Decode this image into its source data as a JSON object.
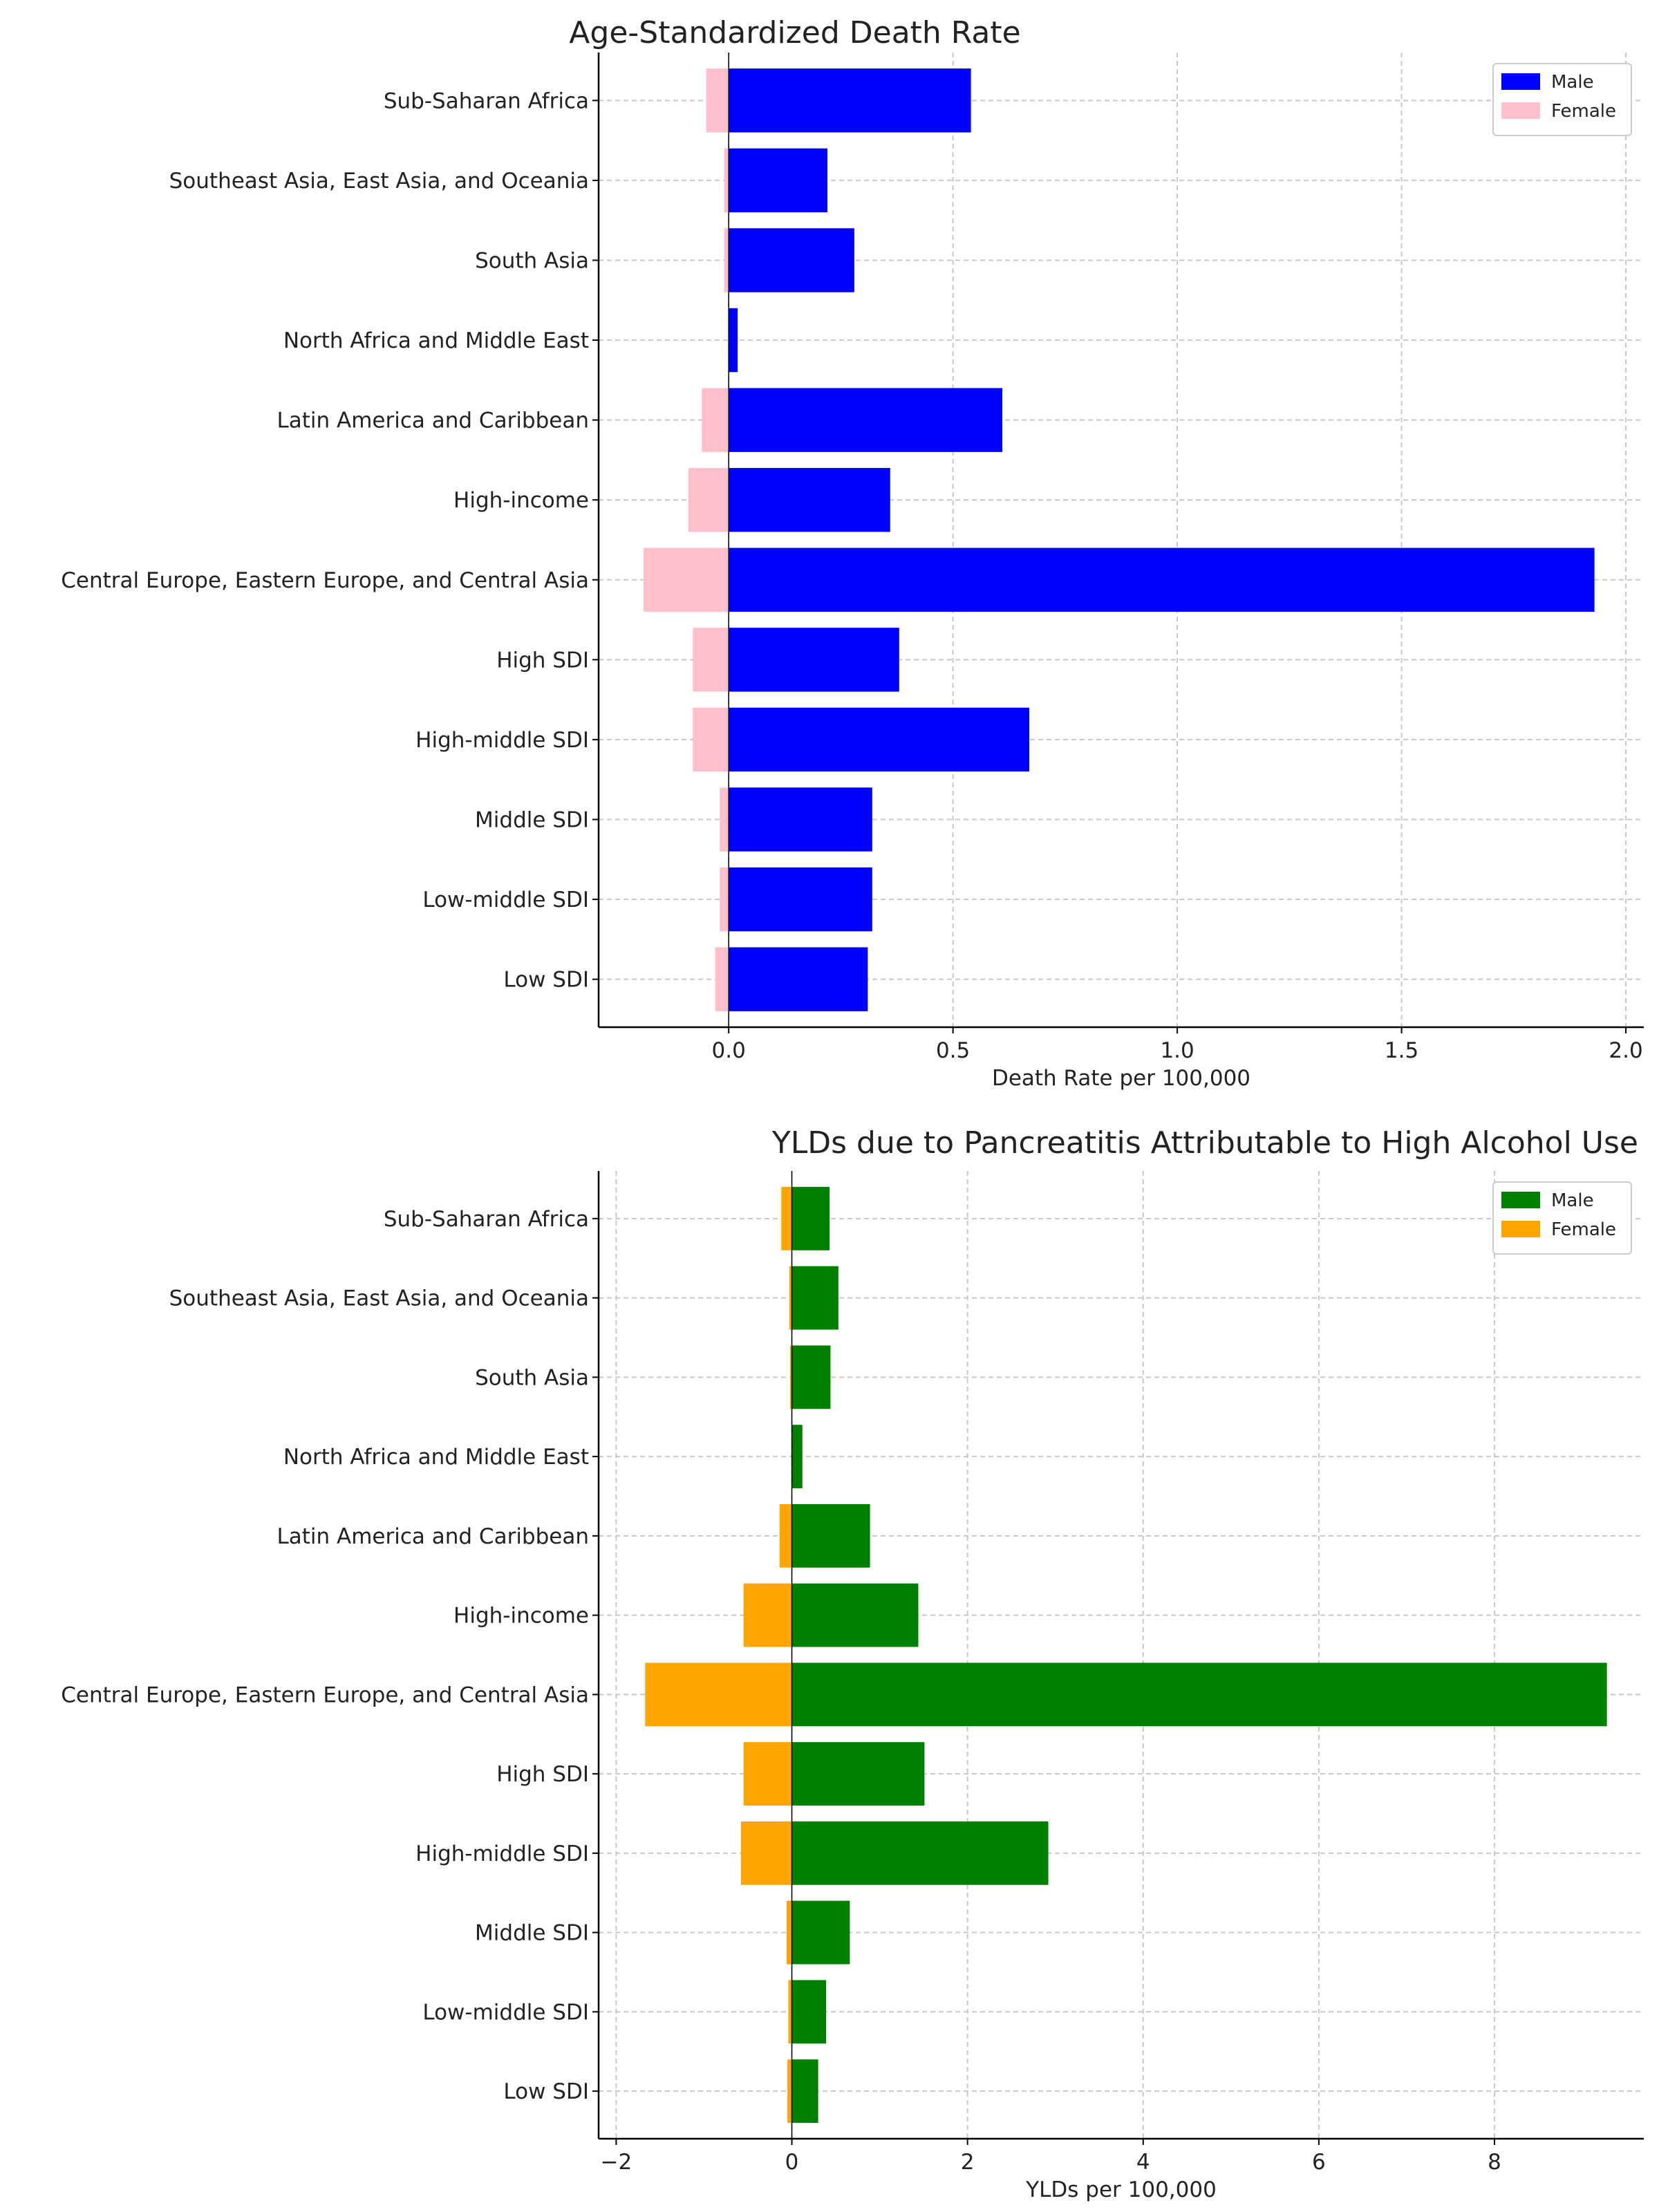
{
  "chart_data": [
    {
      "type": "bar",
      "orientation": "horizontal",
      "title": "Age-Standardized Death Rate",
      "xlabel": "Death Rate per 100,000",
      "ylabel": "",
      "xlim": [
        -0.29,
        2.04
      ],
      "xticks": [
        0.0,
        0.5,
        1.0,
        1.5,
        2.0
      ],
      "xtick_labels": [
        "0.0",
        "0.5",
        "1.0",
        "1.5",
        "2.0"
      ],
      "grid": true,
      "legend": "top-right",
      "categories": [
        "Sub-Saharan Africa",
        "Southeast Asia, East Asia, and Oceania",
        "South Asia",
        "North Africa and Middle East",
        "Latin America and Caribbean",
        "High-income",
        "Central Europe, Eastern Europe, and Central Asia",
        "High SDI",
        "High-middle SDI",
        "Middle SDI",
        "Low-middle SDI",
        "Low SDI"
      ],
      "series": [
        {
          "name": "Male",
          "color": "#0000ff",
          "values": [
            0.54,
            0.22,
            0.28,
            0.02,
            0.61,
            0.36,
            1.93,
            0.38,
            0.67,
            0.32,
            0.32,
            0.31
          ]
        },
        {
          "name": "Female",
          "color": "#ffc0cb",
          "values": [
            -0.05,
            -0.01,
            -0.01,
            0.0,
            -0.06,
            -0.09,
            -0.19,
            -0.08,
            -0.08,
            -0.02,
            -0.02,
            -0.03
          ]
        }
      ]
    },
    {
      "type": "bar",
      "orientation": "horizontal",
      "title": "YLDs due to Pancreatitis Attributable to High Alcohol Use",
      "xlabel": "YLDs per 100,000",
      "ylabel": "",
      "xlim": [
        -2.2,
        9.7
      ],
      "xticks": [
        -2,
        0,
        2,
        4,
        6,
        8
      ],
      "xtick_labels": [
        "−2",
        "0",
        "2",
        "4",
        "6",
        "8"
      ],
      "grid": true,
      "legend": "top-right",
      "categories": [
        "Sub-Saharan Africa",
        "Southeast Asia, East Asia, and Oceania",
        "South Asia",
        "North Africa and Middle East",
        "Latin America and Caribbean",
        "High-income",
        "Central Europe, Eastern Europe, and Central Asia",
        "High SDI",
        "High-middle SDI",
        "Middle SDI",
        "Low-middle SDI",
        "Low SDI"
      ],
      "series": [
        {
          "name": "Male",
          "color": "#008000",
          "values": [
            0.43,
            0.53,
            0.44,
            0.12,
            0.89,
            1.44,
            9.28,
            1.51,
            2.92,
            0.66,
            0.39,
            0.3
          ]
        },
        {
          "name": "Female",
          "color": "#ffa500",
          "values": [
            -0.12,
            -0.03,
            -0.02,
            0.0,
            -0.14,
            -0.55,
            -1.67,
            -0.55,
            -0.58,
            -0.06,
            -0.04,
            -0.05
          ]
        }
      ]
    }
  ]
}
